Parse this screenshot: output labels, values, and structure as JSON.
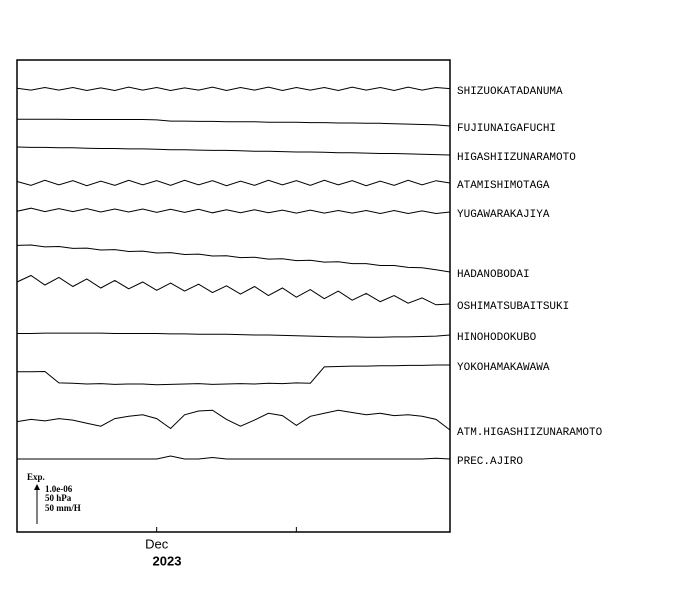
{
  "chart_data": {
    "type": "line",
    "x": [
      0,
      1,
      2,
      3,
      4,
      5,
      6,
      7,
      8,
      9,
      10,
      11,
      12,
      13,
      14,
      15,
      16,
      17,
      18,
      19,
      20,
      21,
      22,
      23,
      24,
      25,
      26,
      27,
      28,
      29,
      30,
      31
    ],
    "xlim": [
      0,
      31
    ],
    "xticks": [
      {
        "value": 10,
        "label": "Dec"
      },
      {
        "value": 20,
        "label": null
      }
    ],
    "x_year_label": "2023",
    "scale_labels": [
      "Exp.",
      "1.0e-06",
      "50 hPa",
      "50 mm/H"
    ],
    "color": "#000000",
    "series": [
      {
        "name": "SHIZUOKATADANUMA",
        "values": [
          0.02,
          -0.03,
          0.04,
          -0.03,
          0.04,
          -0.04,
          0.03,
          -0.04,
          0.05,
          -0.03,
          0.04,
          -0.04,
          0.03,
          -0.03,
          0.05,
          -0.04,
          0.04,
          -0.03,
          0.05,
          -0.04,
          0.04,
          -0.03,
          0.04,
          -0.04,
          0.05,
          -0.03,
          0.04,
          -0.04,
          0.05,
          -0.03,
          0.04,
          0.01
        ]
      },
      {
        "name": "FUJIUNAIGAFUCHI",
        "values": [
          0.18,
          0.18,
          0.18,
          0.18,
          0.17,
          0.17,
          0.17,
          0.17,
          0.17,
          0.17,
          0.16,
          0.13,
          0.13,
          0.12,
          0.12,
          0.11,
          0.11,
          0.11,
          0.1,
          0.1,
          0.1,
          0.09,
          0.09,
          0.08,
          0.08,
          0.07,
          0.07,
          0.06,
          0.05,
          0.04,
          0.03,
          0
        ]
      },
      {
        "name": "HIGASHIIZUNARAMOTO",
        "values": [
          0.21,
          0.2,
          0.2,
          0.19,
          0.19,
          0.18,
          0.17,
          0.17,
          0.16,
          0.16,
          0.15,
          0.14,
          0.14,
          0.13,
          0.12,
          0.12,
          0.11,
          0.1,
          0.1,
          0.09,
          0.08,
          0.08,
          0.07,
          0.06,
          0.06,
          0.05,
          0.04,
          0.04,
          0.03,
          0.02,
          0.01,
          0
        ]
      },
      {
        "name": "ATAMISHIMOTAGA",
        "values": [
          0.04,
          -0.06,
          0.07,
          -0.05,
          0.06,
          -0.07,
          0.05,
          -0.06,
          0.07,
          -0.05,
          0.06,
          -0.06,
          0.07,
          -0.05,
          0.06,
          -0.07,
          0.05,
          -0.06,
          0.07,
          -0.05,
          0.06,
          -0.06,
          0.07,
          -0.05,
          0.06,
          -0.07,
          0.05,
          -0.06,
          0.07,
          -0.05,
          0.06,
          0
        ]
      },
      {
        "name": "YUGAWARAKAJIYA",
        "values": [
          0.02,
          0.1,
          0.01,
          0.09,
          0.01,
          0.09,
          0.0,
          0.08,
          0.0,
          0.08,
          -0.01,
          0.07,
          -0.01,
          0.07,
          -0.02,
          0.06,
          -0.02,
          0.06,
          -0.02,
          0.05,
          -0.03,
          0.05,
          -0.03,
          0.04,
          -0.03,
          0.04,
          -0.04,
          0.04,
          -0.04,
          0.03,
          -0.04,
          0
        ]
      },
      {
        "name": "HADANOBODAI",
        "values": [
          0.7,
          0.71,
          0.66,
          0.67,
          0.62,
          0.63,
          0.58,
          0.59,
          0.54,
          0.55,
          0.5,
          0.51,
          0.46,
          0.47,
          0.42,
          0.43,
          0.38,
          0.39,
          0.34,
          0.35,
          0.3,
          0.31,
          0.26,
          0.27,
          0.22,
          0.22,
          0.17,
          0.17,
          0.12,
          0.11,
          0.06,
          0
        ]
      },
      {
        "name": "OSHIMATSUBAITSUKI",
        "values": [
          0.58,
          0.75,
          0.5,
          0.7,
          0.46,
          0.66,
          0.42,
          0.62,
          0.4,
          0.58,
          0.36,
          0.55,
          0.34,
          0.52,
          0.3,
          0.48,
          0.26,
          0.46,
          0.22,
          0.42,
          0.18,
          0.38,
          0.14,
          0.34,
          0.1,
          0.28,
          0.06,
          0.22,
          0.02,
          0.16,
          -0.02,
          0
        ]
      },
      {
        "name": "HINOHODOKUBO",
        "values": [
          0.04,
          0.04,
          0.05,
          0.05,
          0.05,
          0.05,
          0.05,
          0.04,
          0.04,
          0.04,
          0.04,
          0.03,
          0.03,
          0.02,
          0.02,
          0.02,
          0.01,
          0.0,
          0.0,
          -0.01,
          -0.02,
          -0.03,
          -0.04,
          -0.05,
          -0.05,
          -0.06,
          -0.06,
          -0.05,
          -0.05,
          -0.04,
          -0.03,
          0
        ]
      },
      {
        "name": "YOKOHAMAKAWAWA",
        "values": [
          -0.18,
          -0.18,
          -0.17,
          -0.47,
          -0.48,
          -0.5,
          -0.49,
          -0.51,
          -0.5,
          -0.5,
          -0.52,
          -0.51,
          -0.5,
          -0.49,
          -0.51,
          -0.5,
          -0.49,
          -0.5,
          -0.48,
          -0.49,
          -0.47,
          -0.48,
          -0.05,
          -0.04,
          -0.03,
          -0.03,
          -0.02,
          -0.02,
          -0.01,
          -0.01,
          0.0,
          0.0
        ]
      },
      {
        "name": "ATM.HIGASHIIZUNARAMOTO",
        "values": [
          0.22,
          0.28,
          0.24,
          0.3,
          0.26,
          0.18,
          0.1,
          0.3,
          0.36,
          0.4,
          0.3,
          0.04,
          0.4,
          0.5,
          0.52,
          0.28,
          0.1,
          0.26,
          0.44,
          0.38,
          0.12,
          0.36,
          0.44,
          0.52,
          0.46,
          0.4,
          0.44,
          0.38,
          0.4,
          0.36,
          0.28,
          0.0
        ]
      },
      {
        "name": "PREC.AJIRO",
        "values": [
          0,
          0,
          0,
          0,
          0,
          0,
          0,
          0,
          0,
          0,
          0,
          0.08,
          0,
          0,
          0.04,
          0,
          0,
          0,
          0,
          0,
          0,
          0,
          0,
          0,
          0,
          0,
          0,
          0,
          0,
          0,
          0.02,
          0
        ]
      }
    ]
  }
}
